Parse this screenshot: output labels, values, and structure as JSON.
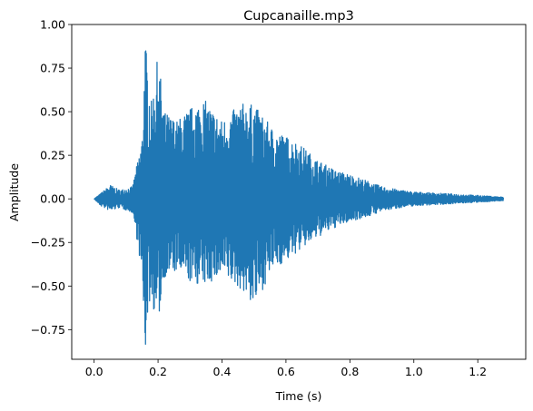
{
  "chart_data": {
    "type": "line",
    "title": "Cupcanaille.mp3",
    "xlabel": "Time (s)",
    "ylabel": "Amplitude",
    "xlim": [
      -0.07,
      1.35
    ],
    "ylim": [
      -0.92,
      1.0
    ],
    "x_ticks": [
      0.0,
      0.2,
      0.4,
      0.6,
      0.8,
      1.0,
      1.2
    ],
    "x_tick_labels": [
      "0.0",
      "0.2",
      "0.4",
      "0.6",
      "0.8",
      "1.0",
      "1.2"
    ],
    "y_ticks": [
      -0.75,
      -0.5,
      -0.25,
      0.0,
      0.25,
      0.5,
      0.75,
      1.0
    ],
    "y_tick_labels": [
      "−0.75",
      "−0.50",
      "−0.25",
      "0.00",
      "0.25",
      "0.50",
      "0.75",
      "1.00"
    ],
    "grid": false,
    "series": [
      {
        "color": "#1f77b4",
        "duration": 1.28,
        "envelope": {
          "t": [
            0.0,
            0.02,
            0.05,
            0.08,
            0.12,
            0.14,
            0.15,
            0.16,
            0.17,
            0.18,
            0.2,
            0.22,
            0.26,
            0.3,
            0.34,
            0.4,
            0.46,
            0.5,
            0.56,
            0.6,
            0.64,
            0.7,
            0.76,
            0.8,
            0.86,
            0.9,
            0.96,
            1.0,
            1.1,
            1.2,
            1.28
          ],
          "upper": [
            0.0,
            0.03,
            0.08,
            0.05,
            0.07,
            0.25,
            0.35,
            0.92,
            0.7,
            0.55,
            0.83,
            0.5,
            0.45,
            0.52,
            0.58,
            0.45,
            0.55,
            0.54,
            0.4,
            0.36,
            0.32,
            0.22,
            0.16,
            0.14,
            0.1,
            0.07,
            0.05,
            0.04,
            0.03,
            0.02,
            0.01
          ],
          "lower": [
            0.0,
            -0.04,
            -0.07,
            -0.05,
            -0.08,
            -0.3,
            -0.5,
            -0.89,
            -0.6,
            -0.6,
            -0.72,
            -0.45,
            -0.42,
            -0.48,
            -0.5,
            -0.45,
            -0.52,
            -0.62,
            -0.4,
            -0.36,
            -0.3,
            -0.22,
            -0.16,
            -0.13,
            -0.1,
            -0.07,
            -0.05,
            -0.04,
            -0.03,
            -0.02,
            -0.01
          ]
        }
      }
    ]
  }
}
